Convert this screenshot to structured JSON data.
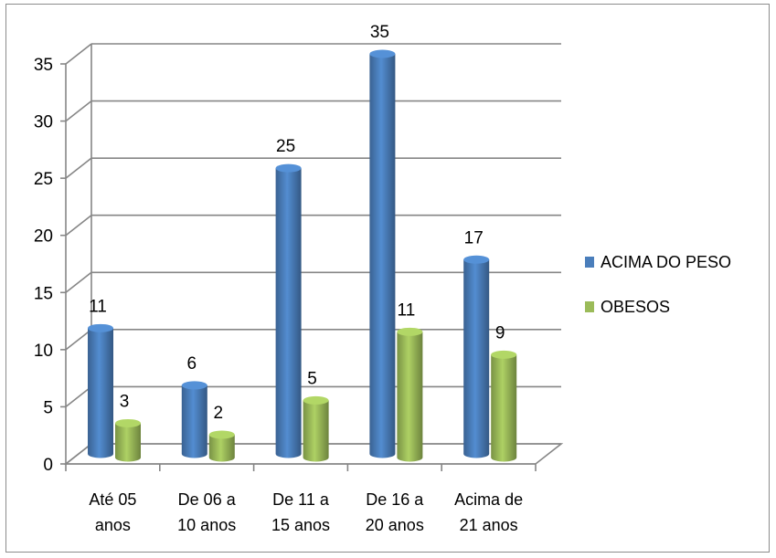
{
  "chart_data": {
    "type": "bar",
    "title": "",
    "xlabel": "",
    "ylabel": "",
    "categories": [
      [
        "Até 05",
        "anos"
      ],
      [
        "De 06 a",
        "10 anos"
      ],
      [
        "De 11 a",
        "15 anos"
      ],
      [
        "De 16 a",
        "20 anos"
      ],
      [
        "Acima de",
        "21 anos"
      ]
    ],
    "series": [
      {
        "name": "ACIMA DO PESO",
        "values": [
          11,
          6,
          25,
          35,
          17
        ],
        "color": "#4a7ebb"
      },
      {
        "name": "OBESOS",
        "values": [
          3,
          2,
          5,
          11,
          9
        ],
        "color": "#9bbb59"
      }
    ],
    "ylim": [
      0,
      35
    ],
    "yticks": [
      0,
      5,
      10,
      15,
      20,
      25,
      30,
      35
    ],
    "grid": true,
    "legend_position": "right",
    "style": "3d-cylinder"
  }
}
